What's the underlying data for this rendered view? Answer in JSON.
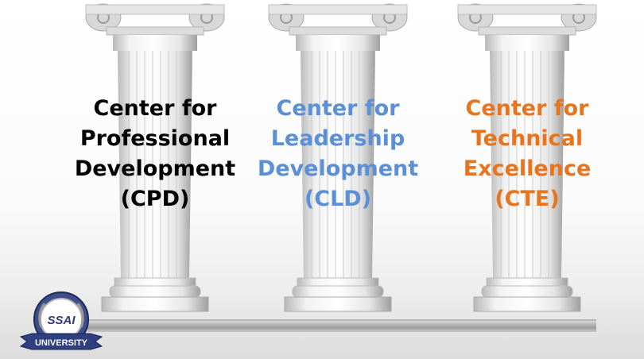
{
  "pillars": [
    {
      "lines": [
        "Center for",
        "Professional",
        "Development",
        "(CPD)"
      ],
      "color": "#000000"
    },
    {
      "lines": [
        "Center for",
        "Leadership",
        "Development",
        "(CLD)"
      ],
      "color": "#5b8fd6"
    },
    {
      "lines": [
        "Center for",
        "Technical",
        "Excellence",
        "(CTE)"
      ],
      "color": "#e8741e"
    }
  ],
  "logo": {
    "top": "SSAI",
    "bottom": "UNIVERSITY"
  }
}
